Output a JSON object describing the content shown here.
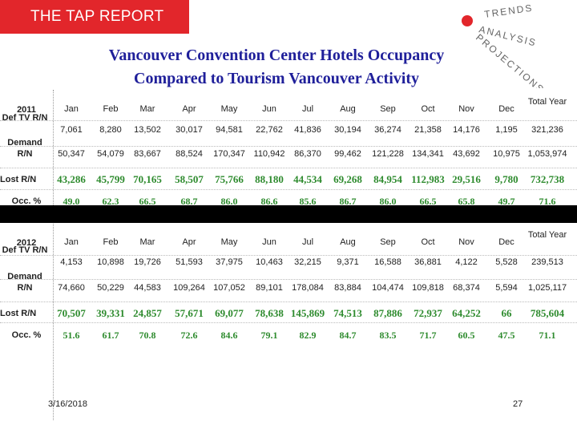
{
  "banner": {
    "text": "THE TAP REPORT"
  },
  "logo": {
    "words": [
      "TRENDS",
      "ANALYSIS",
      "PROJECTIONS"
    ],
    "accent_color": "#e2262b"
  },
  "title": {
    "line1": "Vancouver Convention Center Hotels Occupancy",
    "line2": "Compared to Tourism Vancouver Activity"
  },
  "row_labels": {
    "def_tv": "Def TV R/N",
    "demand": "Demand R/N",
    "lost": "Lost R/N",
    "occ": "Occ. %"
  },
  "columns": [
    "Jan",
    "Feb",
    "Mar",
    "Apr",
    "May",
    "Jun",
    "Jul",
    "Aug",
    "Sep",
    "Oct",
    "Nov",
    "Dec",
    "Total Year"
  ],
  "tables": [
    {
      "year": "2011",
      "def_tv": [
        "7,061",
        "8,280",
        "13,502",
        "30,017",
        "94,581",
        "22,762",
        "41,836",
        "30,194",
        "36,274",
        "21,358",
        "14,176",
        "1,195",
        "321,236"
      ],
      "demand": [
        "50,347",
        "54,079",
        "83,667",
        "88,524",
        "170,347",
        "110,942",
        "86,370",
        "99,462",
        "121,228",
        "134,341",
        "43,692",
        "10,975",
        "1,053,974"
      ],
      "lost": [
        "43,286",
        "45,799",
        "70,165",
        "58,507",
        "75,766",
        "88,180",
        "44,534",
        "69,268",
        "84,954",
        "112,983",
        "29,516",
        "9,780",
        "732,738"
      ],
      "occ": [
        "49.0",
        "62.3",
        "66.5",
        "68.7",
        "86.0",
        "86.6",
        "85.6",
        "86.7",
        "86.0",
        "66.5",
        "65.8",
        "49.7",
        "71.6"
      ]
    },
    {
      "year": "2012",
      "def_tv": [
        "4,153",
        "10,898",
        "19,726",
        "51,593",
        "37,975",
        "10,463",
        "32,215",
        "9,371",
        "16,588",
        "36,881",
        "4,122",
        "5,528",
        "239,513"
      ],
      "demand": [
        "74,660",
        "50,229",
        "44,583",
        "109,264",
        "107,052",
        "89,101",
        "178,084",
        "83,884",
        "104,474",
        "109,818",
        "68,374",
        "5,594",
        "1,025,117"
      ],
      "lost": [
        "70,507",
        "39,331",
        "24,857",
        "57,671",
        "69,077",
        "78,638",
        "145,869",
        "74,513",
        "87,886",
        "72,937",
        "64,252",
        "66",
        "785,604"
      ],
      "occ": [
        "51.6",
        "61.7",
        "70.8",
        "72.6",
        "84.6",
        "79.1",
        "82.9",
        "84.7",
        "83.5",
        "71.7",
        "60.5",
        "47.5",
        "71.1"
      ]
    }
  ],
  "footer": {
    "date": "3/16/2018",
    "page": "27"
  }
}
